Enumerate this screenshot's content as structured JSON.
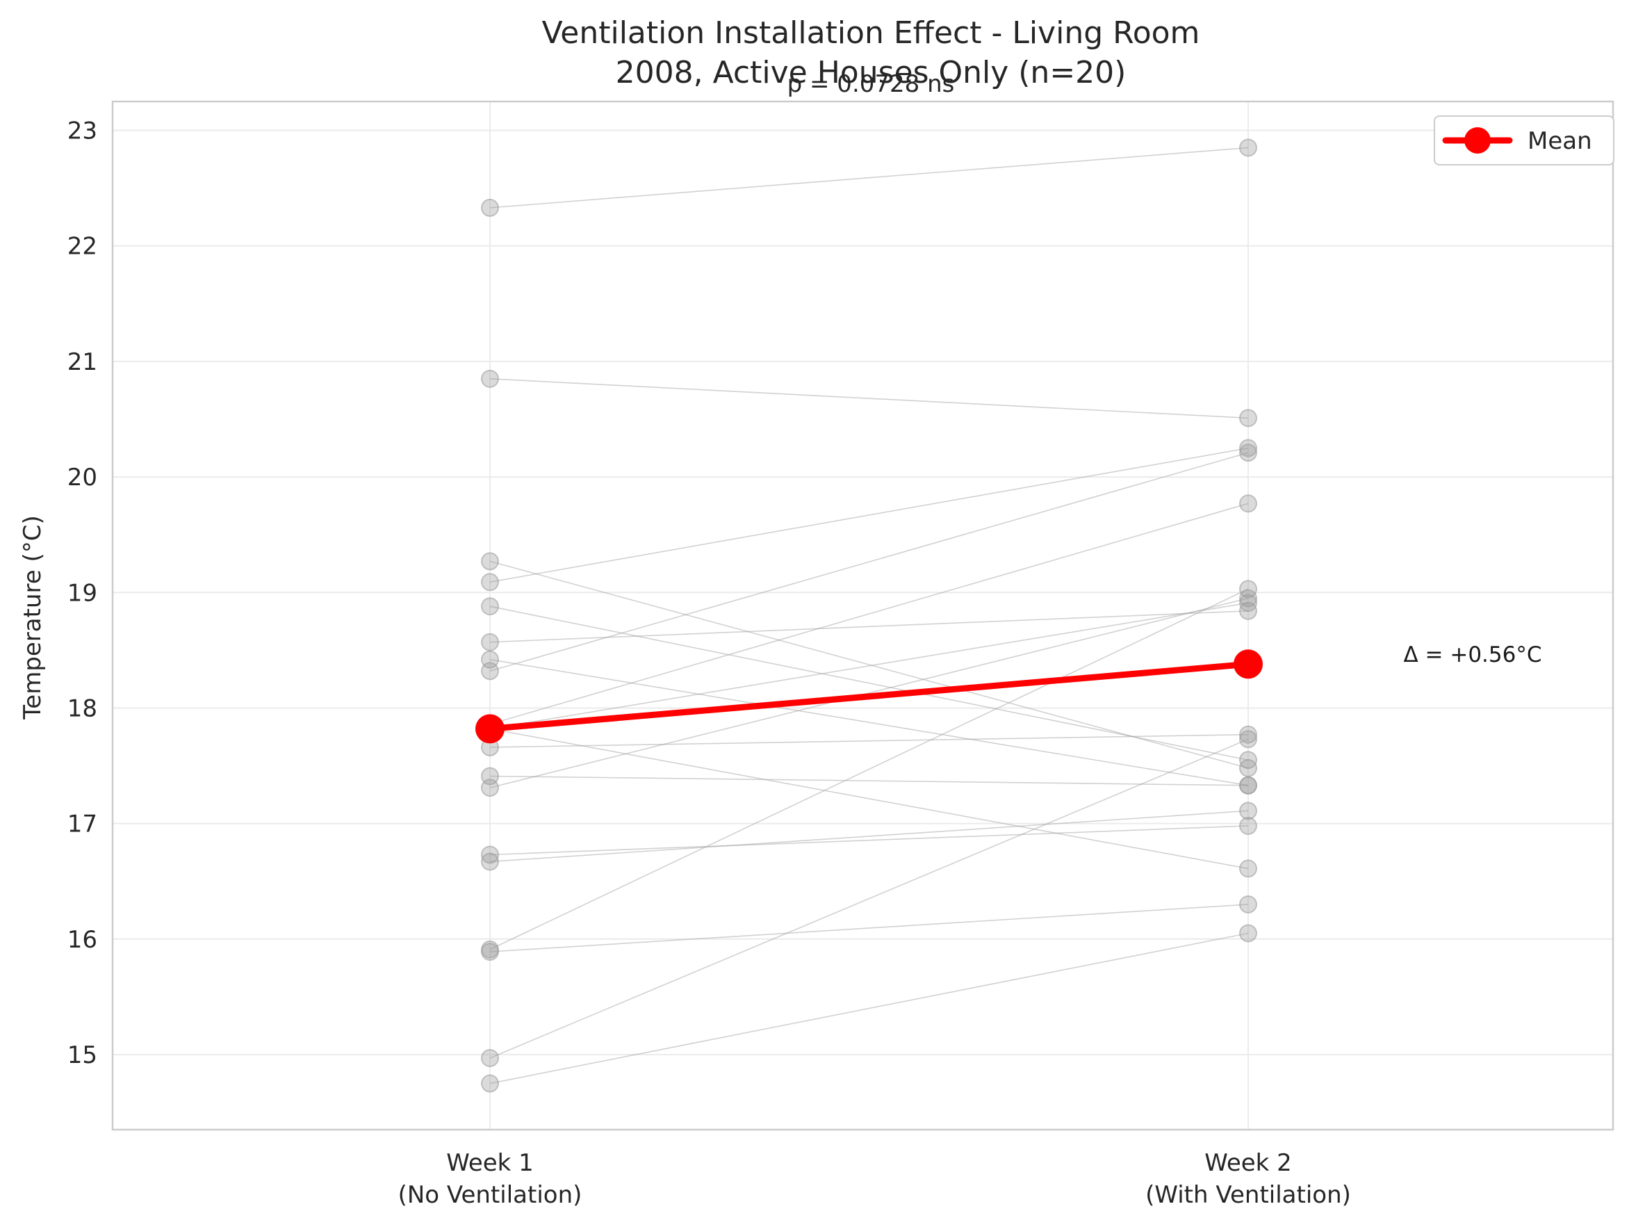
{
  "chart_data": {
    "type": "line",
    "title_line1": "Ventilation Installation Effect - Living Room",
    "title_line2": "2008, Active Houses Only (n=20)",
    "p_annotation": "p = 0.0728 ns",
    "delta_annotation": "Δ = +0.56°C",
    "xlabel": "",
    "ylabel": "Temperature (°C)",
    "categories": [
      "Week 1\n(No Ventilation)",
      "Week 2\n(With Ventilation)"
    ],
    "category_lines": [
      [
        "Week 1",
        "(No Ventilation)"
      ],
      [
        "Week 2",
        "(With Ventilation)"
      ]
    ],
    "ylim": [
      14.35,
      23.25
    ],
    "yticks": [
      15,
      16,
      17,
      18,
      19,
      20,
      21,
      22,
      23
    ],
    "grid": true,
    "legend": {
      "position": "top-right",
      "entries": [
        "Mean"
      ]
    },
    "colors": {
      "mean": "#ff0000",
      "individual": "#999999",
      "grid": "#ebebeb",
      "axes": "#cccccc"
    },
    "individual_pairs": [
      [
        22.33,
        22.85
      ],
      [
        20.85,
        20.51
      ],
      [
        19.27,
        17.48
      ],
      [
        19.09,
        20.25
      ],
      [
        18.88,
        17.55
      ],
      [
        18.57,
        18.84
      ],
      [
        18.42,
        17.33
      ],
      [
        18.32,
        20.21
      ],
      [
        17.86,
        19.77
      ],
      [
        17.82,
        16.61
      ],
      [
        17.66,
        17.77
      ],
      [
        17.41,
        17.33
      ],
      [
        17.31,
        18.95
      ],
      [
        16.73,
        16.98
      ],
      [
        16.67,
        17.11
      ],
      [
        15.91,
        19.03
      ],
      [
        15.89,
        16.3
      ],
      [
        14.97,
        17.73
      ],
      [
        14.75,
        16.05
      ],
      [
        17.82,
        18.91
      ]
    ],
    "mean": {
      "name": "Mean",
      "values": [
        17.82,
        18.38
      ]
    }
  }
}
